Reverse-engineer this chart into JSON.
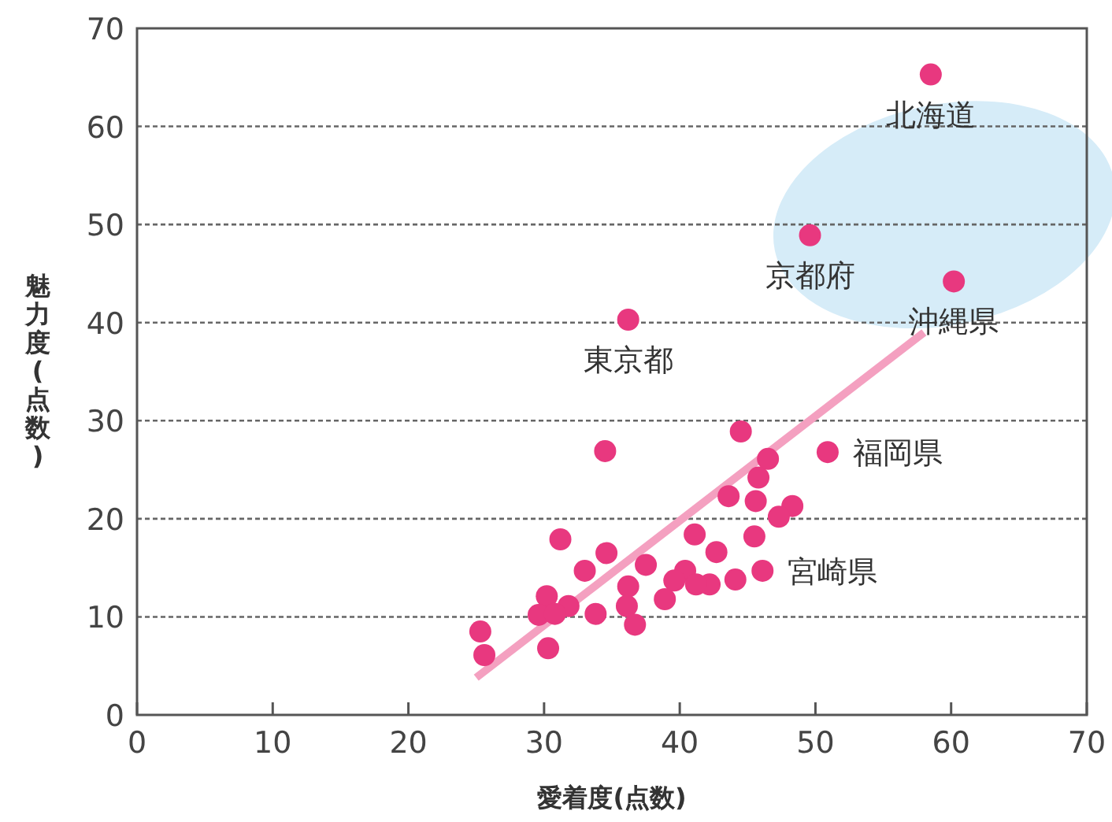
{
  "chart_data": {
    "type": "scatter",
    "xlabel": "愛着度(点数)",
    "ylabel": "魅力度(点数)",
    "xlim": [
      0,
      70
    ],
    "ylim": [
      0,
      70
    ],
    "xticks": [
      0,
      10,
      20,
      30,
      40,
      50,
      60,
      70
    ],
    "yticks": [
      0,
      10,
      20,
      30,
      40,
      50,
      60,
      70
    ],
    "grid": "y",
    "series": [
      {
        "color": "#e8387f",
        "marker": "circle",
        "x": [
          58.5,
          49.6,
          60.2,
          36.2,
          50.9,
          44.5,
          34.5,
          46.5,
          45.8,
          43.6,
          45.6,
          48.3,
          47.3,
          31.2,
          41.1,
          45.5,
          34.6,
          42.7,
          37.5,
          33.0,
          40.4,
          46.1,
          44.1,
          42.2,
          41.2,
          39.6,
          36.2,
          38.9,
          30.2,
          31.8,
          29.6,
          30.8,
          36.1,
          33.8,
          36.7,
          25.3,
          25.6,
          30.3
        ],
        "values": [
          65.3,
          48.9,
          44.2,
          40.3,
          26.8,
          28.9,
          26.9,
          26.1,
          24.2,
          22.3,
          21.8,
          21.3,
          20.2,
          17.9,
          18.4,
          18.2,
          16.5,
          16.6,
          15.3,
          14.7,
          14.7,
          14.7,
          13.8,
          13.3,
          13.3,
          13.7,
          13.1,
          11.8,
          12.1,
          11.1,
          10.2,
          10.3,
          11.1,
          10.3,
          9.2,
          8.5,
          6.1,
          6.8
        ]
      },
      {
        "type": "line",
        "color": "#f4a0c0",
        "x": [
          25,
          58
        ],
        "values": [
          3.8,
          39
        ]
      }
    ],
    "annotations": [
      {
        "text": "北海道",
        "x": 58.5,
        "y": 65.3
      },
      {
        "text": "京都府",
        "x": 49.6,
        "y": 48.9
      },
      {
        "text": "沖縄県",
        "x": 60.2,
        "y": 44.2
      },
      {
        "text": "東京都",
        "x": 36.2,
        "y": 40.3
      },
      {
        "text": "福岡県",
        "x": 50.9,
        "y": 26.8
      },
      {
        "text": "宮崎県",
        "x": 46.1,
        "y": 14.7
      }
    ]
  }
}
